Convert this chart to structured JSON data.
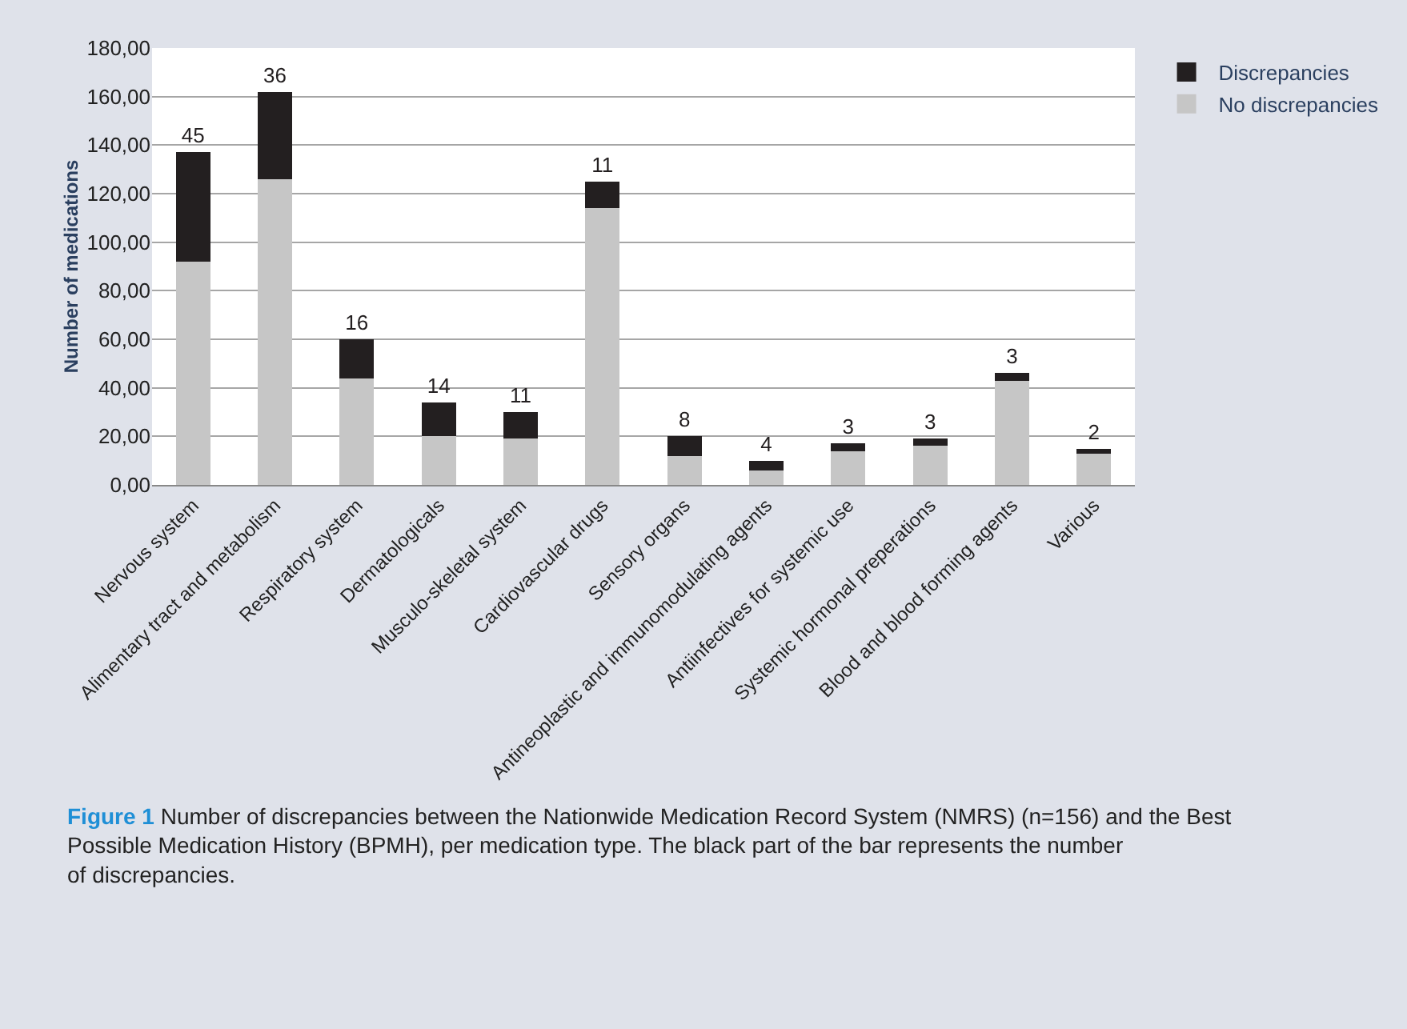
{
  "chart_data": {
    "type": "bar",
    "stacked": true,
    "ylabel": "Number of medications",
    "categories": [
      "Nervous system",
      "Alimentary tract and metabolism",
      "Respiratory system",
      "Dermatologicals",
      "Musculo-skeletal system",
      "Cardiovascular drugs",
      "Sensory organs",
      "Antineoplastic and immunomodulating agents",
      "Antiinfectives for systemic use",
      "Systemic hormonal preperations",
      "Blood and blood forming agents",
      "Various"
    ],
    "series": [
      {
        "name": "No discrepancies",
        "color": "#c6c6c6",
        "values": [
          92,
          126,
          44,
          20,
          19,
          114,
          12,
          6,
          14,
          16,
          43,
          13
        ]
      },
      {
        "name": "Discrepancies",
        "color": "#231f20",
        "values": [
          45,
          36,
          16,
          14,
          11,
          11,
          8,
          4,
          3,
          3,
          3,
          2
        ],
        "value_labels": [
          "45",
          "36",
          "16",
          "14",
          "11",
          "11",
          "8",
          "4",
          "3",
          "3",
          "3",
          "2"
        ]
      }
    ],
    "ylim": [
      0,
      180
    ],
    "yticks": [
      {
        "value": 0,
        "label": "0,00"
      },
      {
        "value": 20,
        "label": "20,00"
      },
      {
        "value": 40,
        "label": "40,00"
      },
      {
        "value": 60,
        "label": "60,00"
      },
      {
        "value": 80,
        "label": "80,00"
      },
      {
        "value": 100,
        "label": "100,00"
      },
      {
        "value": 120,
        "label": "120,00"
      },
      {
        "value": 140,
        "label": "140,00"
      },
      {
        "value": 160,
        "label": "160,00"
      },
      {
        "value": 180,
        "label": "180,00"
      }
    ],
    "grid": "y",
    "legend": "top right",
    "annotations": [
      "Figure 1",
      "Number of discrepancies between the Nationwide Medication Record System (NMRS) (n=156) and the Best Possible Medication History (BPMH), per medication type. The black part of the bar represents the number of discrepancies."
    ]
  }
}
